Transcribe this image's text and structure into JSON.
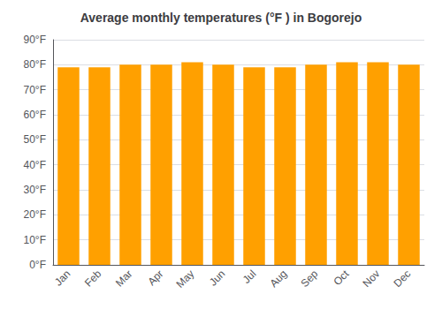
{
  "chart_data": {
    "type": "bar",
    "title": "Average monthly temperatures (°F ) in Bogorejo",
    "categories": [
      "Jan",
      "Feb",
      "Mar",
      "Apr",
      "May",
      "Jun",
      "Jul",
      "Aug",
      "Sep",
      "Oct",
      "Nov",
      "Dec"
    ],
    "values": [
      79,
      79,
      80,
      80,
      81,
      80,
      79,
      79,
      80,
      81,
      81,
      80
    ],
    "color": "#FFA000",
    "ylim": [
      0,
      90
    ],
    "yticks": [
      {
        "value": 0,
        "label": "0°F"
      },
      {
        "value": 10,
        "label": "10°F"
      },
      {
        "value": 20,
        "label": "20°F"
      },
      {
        "value": 30,
        "label": "30°F"
      },
      {
        "value": 40,
        "label": "40°F"
      },
      {
        "value": 50,
        "label": "50°F"
      },
      {
        "value": 60,
        "label": "60°F"
      },
      {
        "value": 70,
        "label": "70°F"
      },
      {
        "value": 80,
        "label": "80°F"
      },
      {
        "value": 90,
        "label": "90°F"
      }
    ],
    "grid": true
  }
}
